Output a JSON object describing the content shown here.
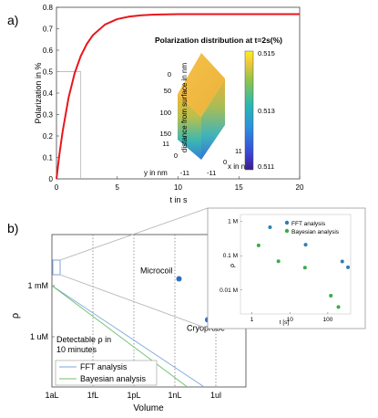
{
  "panels": {
    "a": "a)",
    "b": "b)"
  },
  "chart_data": [
    {
      "id": "a",
      "type": "line",
      "xlabel": "t in s",
      "ylabel": "Polarization in %",
      "xlim": [
        0,
        20
      ],
      "ylim": [
        0,
        0.8
      ],
      "x_ticks": [
        "0",
        "5",
        "10",
        "15",
        "20"
      ],
      "y_ticks": [
        "0",
        "0.1",
        "0.2",
        "0.3",
        "0.4",
        "0.5",
        "0.6",
        "0.7",
        "0.8"
      ],
      "grid": false,
      "series": [
        {
          "color": "#e8161c",
          "x": [
            0,
            0.25,
            0.5,
            1,
            1.5,
            2,
            2.5,
            3,
            4,
            5,
            6,
            7,
            8,
            10,
            12,
            15,
            20
          ],
          "y": [
            0,
            0.117,
            0.219,
            0.379,
            0.493,
            0.573,
            0.63,
            0.67,
            0.72,
            0.745,
            0.757,
            0.763,
            0.766,
            0.768,
            0.768,
            0.768,
            0.768
          ]
        }
      ],
      "reference": {
        "x": 2,
        "y": 0.5,
        "color": "#aaaaaa"
      }
    },
    {
      "id": "a-inset",
      "type": "heatmap",
      "title": "Polarization distribution at t=2s(%)",
      "zlabel": "distance from surface in nm",
      "ylabel": "y in nm",
      "xlabel": "x in nm",
      "z_ticks": [
        "0",
        "50",
        "100",
        "150"
      ],
      "y_ticks": [
        "11",
        "0",
        "-11"
      ],
      "x_ticks": [
        "-11",
        "0",
        "11"
      ],
      "colorbar_ticks": [
        "0.515",
        "0.513",
        "0.511"
      ],
      "colorbar_range": [
        0.511,
        0.515
      ]
    },
    {
      "id": "b",
      "type": "line",
      "xlabel": "Volume",
      "ylabel": "ρ",
      "x_ticks": [
        "1aL",
        "1fL",
        "1pL",
        "1nL",
        "1ul"
      ],
      "y_ticks": [
        "1 mM",
        "1 uM"
      ],
      "note": "Detectable ρ in 10 minutes",
      "series": [
        {
          "name": "FFT analysis",
          "color": "#7fa6d8",
          "x": [
            "1aL",
            "1ul"
          ],
          "y_decades_vs_1mM": [
            0,
            -6.4
          ]
        },
        {
          "name": "Bayesian analysis",
          "color": "#6cbf6c",
          "x": [
            "1aL",
            "1ul"
          ],
          "y_decades_vs_1mM": [
            0,
            -7.2
          ]
        }
      ],
      "points": [
        {
          "label": "Microcoil",
          "color": "#2e6dbf",
          "x_decades_from_1aL": 9.3,
          "y_decades_vs_1mM": 0.4
        },
        {
          "label": "Cryoprobe",
          "color": "#2e6dbf",
          "x_decades_from_1aL": 11.4,
          "y_decades_vs_1mM": -2.0
        }
      ],
      "legend_position": "bottom-left"
    },
    {
      "id": "b-inset",
      "type": "scatter",
      "xlabel": "t [s]",
      "ylabel": "ρ",
      "x_ticks": [
        "1",
        "10",
        "100"
      ],
      "y_ticks": [
        "1 M",
        "0.1 M",
        "0.01 M"
      ],
      "series": [
        {
          "name": "FFT analysis",
          "color": "#2e7db4",
          "x": [
            3,
            26,
            240,
            340
          ],
          "y": [
            0.68,
            0.21,
            0.068,
            0.046
          ]
        },
        {
          "name": "Bayesian analysis",
          "color": "#3aab4a",
          "x": [
            1.5,
            5,
            25,
            120,
            190
          ],
          "y": [
            0.2,
            0.069,
            0.045,
            0.0068,
            0.0032
          ]
        }
      ],
      "legend_position": "top-right"
    }
  ]
}
